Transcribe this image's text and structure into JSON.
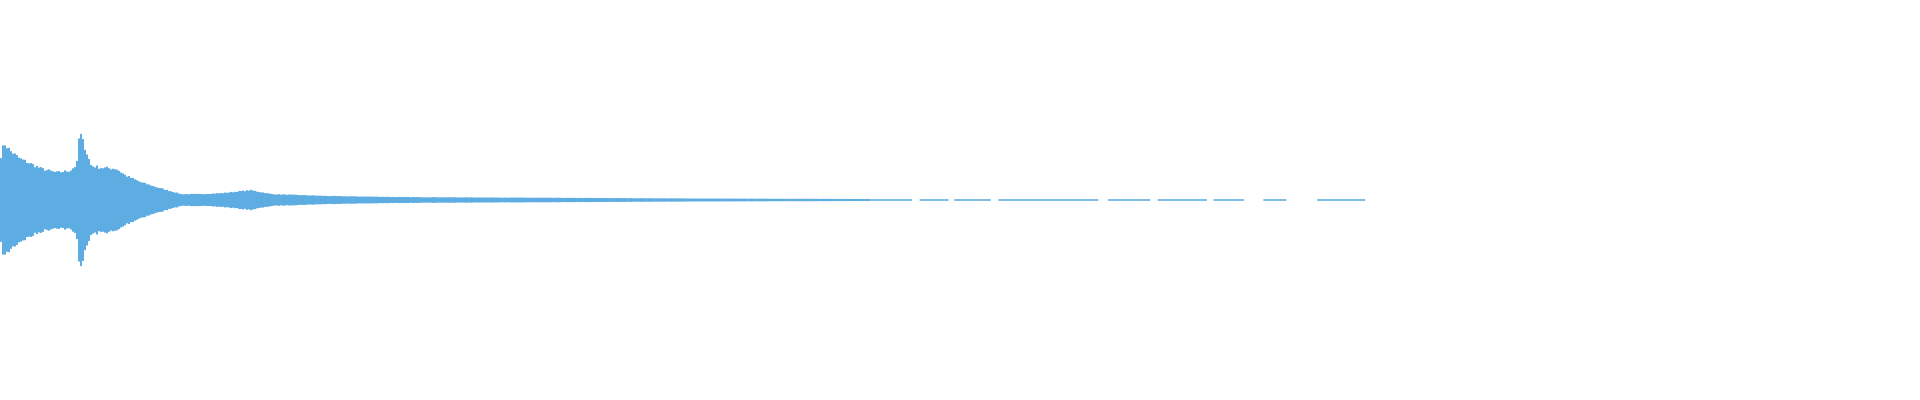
{
  "chart_data": {
    "type": "area",
    "title": "",
    "xlabel": "",
    "ylabel": "",
    "grid": false,
    "legend": "none",
    "color": "#5dade2",
    "ylim": [
      -1,
      1
    ],
    "xlim": [
      0,
      1
    ],
    "envelope": [
      [
        0.0,
        0.225
      ],
      [
        0.0016,
        0.29
      ],
      [
        0.005,
        0.25
      ],
      [
        0.01,
        0.21
      ],
      [
        0.021,
        0.16
      ],
      [
        0.029,
        0.14
      ],
      [
        0.036,
        0.15
      ],
      [
        0.0395,
        0.18
      ],
      [
        0.0405,
        0.31
      ],
      [
        0.0417,
        0.33
      ],
      [
        0.044,
        0.26
      ],
      [
        0.047,
        0.175
      ],
      [
        0.052,
        0.165
      ],
      [
        0.06,
        0.16
      ],
      [
        0.065,
        0.125
      ],
      [
        0.073,
        0.09
      ],
      [
        0.083,
        0.06
      ],
      [
        0.094,
        0.03
      ],
      [
        0.104,
        0.03
      ],
      [
        0.115,
        0.035
      ],
      [
        0.13,
        0.05
      ],
      [
        0.141,
        0.03
      ],
      [
        0.156,
        0.025
      ],
      [
        0.172,
        0.02
      ],
      [
        0.208,
        0.015
      ],
      [
        0.26,
        0.0125
      ],
      [
        0.313,
        0.01
      ],
      [
        0.365,
        0.0075
      ],
      [
        0.417,
        0.006
      ],
      [
        0.453,
        0.005
      ],
      [
        0.661,
        0.005
      ]
    ],
    "sparse_segments": [
      [
        0.453,
        0.475
      ],
      [
        0.479,
        0.494
      ],
      [
        0.497,
        0.516
      ],
      [
        0.52,
        0.572
      ],
      [
        0.577,
        0.599
      ],
      [
        0.603,
        0.6286
      ],
      [
        0.632,
        0.648
      ],
      [
        0.658,
        0.67
      ],
      [
        0.686,
        0.711
      ]
    ]
  }
}
